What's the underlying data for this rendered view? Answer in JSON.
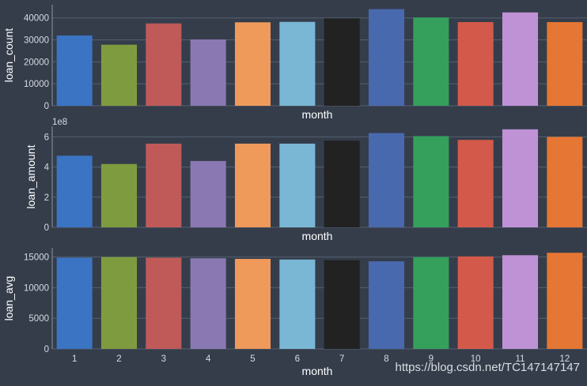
{
  "chart_data": [
    {
      "type": "bar",
      "xlabel": "month",
      "ylabel": "loan_count",
      "offset_label": "",
      "categories": [
        "1",
        "2",
        "3",
        "4",
        "5",
        "6",
        "7",
        "8",
        "9",
        "10",
        "11",
        "12"
      ],
      "values": [
        32000,
        27800,
        37500,
        30200,
        38000,
        38200,
        39800,
        44000,
        40200,
        38100,
        42500,
        38100
      ],
      "ylim": [
        0,
        46000
      ],
      "yticks": [
        0,
        10000,
        20000,
        30000,
        40000
      ],
      "show_tick_labels": false
    },
    {
      "type": "bar",
      "xlabel": "month",
      "ylabel": "loan_amount",
      "offset_label": "1e8",
      "categories": [
        "1",
        "2",
        "3",
        "4",
        "5",
        "6",
        "7",
        "8",
        "9",
        "10",
        "11",
        "12"
      ],
      "values": [
        4.75,
        4.2,
        5.55,
        4.4,
        5.55,
        5.55,
        5.75,
        6.25,
        6.05,
        5.8,
        6.5,
        6.0
      ],
      "ylim": [
        0,
        6.7
      ],
      "yticks": [
        0,
        2,
        4,
        6
      ],
      "show_tick_labels": false
    },
    {
      "type": "bar",
      "xlabel": "month",
      "ylabel": "loan_avg",
      "offset_label": "",
      "categories": [
        "1",
        "2",
        "3",
        "4",
        "5",
        "6",
        "7",
        "8",
        "9",
        "10",
        "11",
        "12"
      ],
      "values": [
        14900,
        15000,
        14900,
        14800,
        14700,
        14600,
        14500,
        14300,
        15000,
        15100,
        15300,
        15700
      ],
      "ylim": [
        0,
        16500
      ],
      "yticks": [
        0,
        5000,
        10000,
        15000
      ],
      "show_tick_labels": true
    }
  ],
  "palette": [
    "#3a74c2",
    "#7e9c3f",
    "#c05a59",
    "#8a78b2",
    "#ef9a5a",
    "#79b7d4",
    "#222222",
    "#4969ae",
    "#34a05c",
    "#d35a4a",
    "#bf92d6",
    "#e57633"
  ],
  "style": {
    "background": "#353d4b",
    "grid_color": "#55606f",
    "text_color": "#ffffff",
    "tick_color": "#d6dbe2"
  },
  "watermark": "https://blog.csdn.net/TC147147147"
}
